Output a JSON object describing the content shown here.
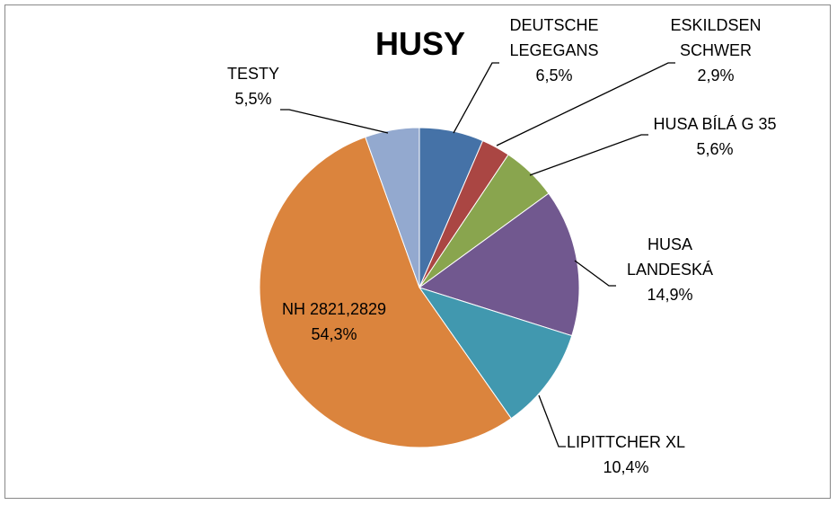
{
  "chart_data": {
    "type": "pie",
    "title": "HUSY",
    "categories": [
      "DEUTSCHE LEGEGANS",
      "ESKILDSEN SCHWER",
      "HUSA BÍLÁ G 35",
      "HUSA LANDESKÁ",
      "LIPITTCHER XL",
      "NH 2821,2829",
      "TESTY"
    ],
    "values": [
      6.5,
      2.9,
      5.6,
      14.9,
      10.4,
      54.3,
      5.5
    ],
    "value_labels": [
      "6,5%",
      "2,9%",
      "5,6%",
      "14,9%",
      "10,4%",
      "54,3%",
      "5,5%"
    ],
    "colors": [
      "#4572a7",
      "#aa4643",
      "#89a54e",
      "#71588f",
      "#4198af",
      "#db843d",
      "#93a9cf"
    ]
  }
}
